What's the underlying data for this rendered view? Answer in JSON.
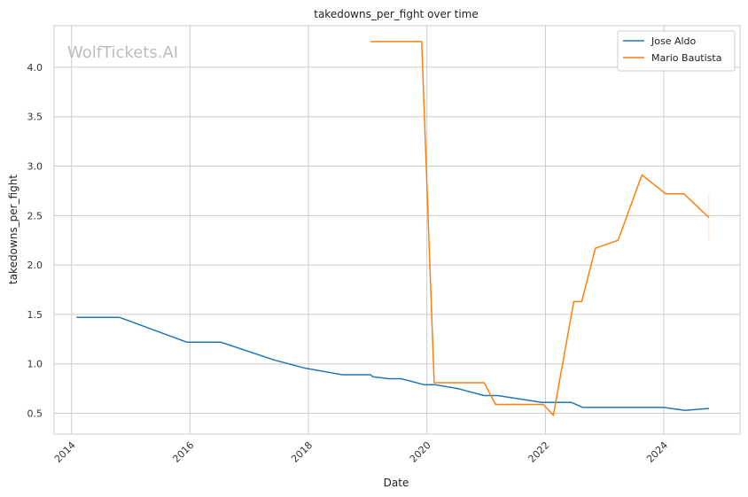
{
  "chart_data": {
    "type": "line",
    "title": "takedowns_per_fight over time",
    "xlabel": "Date",
    "ylabel": "takedowns_per_fight",
    "watermark": "WolfTickets.AI",
    "xlim": [
      "2013-09-15",
      "2025-04-15"
    ],
    "ylim": [
      0.29,
      4.42
    ],
    "x_ticks": [
      "2014-01-01",
      "2016-01-01",
      "2018-01-01",
      "2020-01-01",
      "2022-01-01",
      "2024-01-01"
    ],
    "x_tick_labels": [
      "2014",
      "2016",
      "2018",
      "2020",
      "2022",
      "2024"
    ],
    "y_ticks": [
      0.5,
      1.0,
      1.5,
      2.0,
      2.5,
      3.0,
      3.5,
      4.0
    ],
    "y_tick_labels": [
      "0.5",
      "1.0",
      "1.5",
      "2.0",
      "2.5",
      "3.0",
      "3.5",
      "4.0"
    ],
    "grid": true,
    "legend_position": "top-right",
    "series": [
      {
        "name": "Jose Aldo",
        "color": "#1f77b4",
        "x": [
          "2014-02-01",
          "2014-10-25",
          "2015-12-12",
          "2016-07-09",
          "2017-06-03",
          "2017-12-02",
          "2018-07-28",
          "2019-01-19",
          "2019-02-02",
          "2019-05-11",
          "2019-07-27",
          "2019-12-14",
          "2020-02-22",
          "2020-07-11",
          "2020-12-19",
          "2021-03-13",
          "2021-12-11",
          "2022-06-11",
          "2022-08-20",
          "2023-05-06",
          "2024-01-01",
          "2024-05-11",
          "2024-10-05"
        ],
        "y": [
          1.47,
          1.47,
          1.22,
          1.22,
          1.04,
          0.96,
          0.89,
          0.89,
          0.87,
          0.85,
          0.85,
          0.79,
          0.79,
          0.75,
          0.68,
          0.68,
          0.61,
          0.61,
          0.56,
          0.56,
          0.56,
          0.53,
          0.55
        ]
      },
      {
        "name": "Mario Bautista",
        "color": "#ff7f0e",
        "x": [
          "2019-01-19",
          "2019-11-30",
          "2020-02-15",
          "2020-12-19",
          "2021-02-27",
          "2021-12-18",
          "2022-02-19",
          "2022-06-25",
          "2022-08-13",
          "2022-11-05",
          "2023-03-25",
          "2023-08-19",
          "2024-01-13",
          "2024-05-04",
          "2024-10-05"
        ],
        "y": [
          4.26,
          4.26,
          0.81,
          0.81,
          0.59,
          0.59,
          0.48,
          1.63,
          1.63,
          2.17,
          2.25,
          2.91,
          2.72,
          2.72,
          2.48
        ]
      }
    ],
    "error_bars": [
      {
        "series": "Mario Bautista",
        "x": "2024-10-05",
        "y_low": 2.25,
        "y_high": 2.72
      }
    ]
  }
}
